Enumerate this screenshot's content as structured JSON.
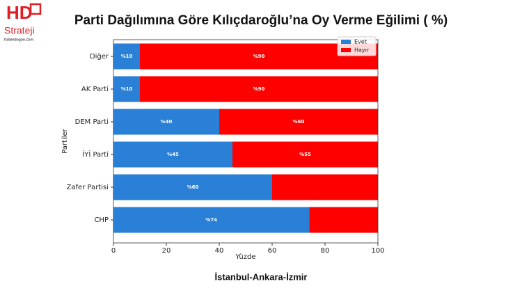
{
  "logo": {
    "mark": "HD",
    "name": "Strateji",
    "site": "haberdogan.com"
  },
  "chart_data": {
    "type": "stacked-barh",
    "title": "Parti Dağılımına Göre Kılıçdaroğlu’na Oy Verme Eğilimi ( %)",
    "subtitle": "İstanbul-Ankara-İzmir",
    "x_label": "Yüzde",
    "y_label": "Partiler",
    "categories": [
      "Diğer",
      "AK Parti",
      "DEM Parti",
      "İYİ Parti",
      "Zafer Partisi",
      "CHP"
    ],
    "series": [
      {
        "name": "Evet",
        "color": "#2a7fd6",
        "values": [
          10,
          10,
          40,
          45,
          60,
          74
        ],
        "value_labels": [
          "%10",
          "%10",
          "%40",
          "%45",
          "%60",
          "%74"
        ]
      },
      {
        "name": "Hayır",
        "color": "#ff0000",
        "values": [
          90,
          90,
          60,
          55,
          40,
          26
        ],
        "value_labels": [
          "%90",
          "%90",
          "%60",
          "%55",
          null,
          null
        ]
      }
    ],
    "xlim": [
      0,
      100
    ],
    "xticks": [
      0,
      20,
      40,
      60,
      80,
      100
    ],
    "legend": "upper right"
  }
}
